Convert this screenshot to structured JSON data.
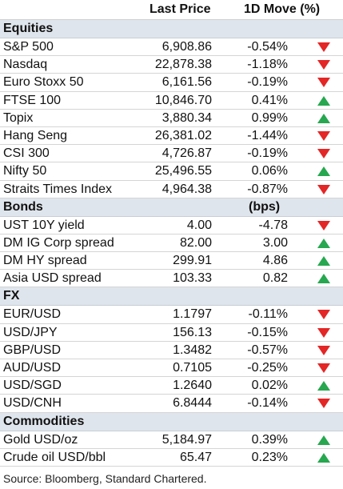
{
  "header": {
    "last_price": "Last Price",
    "move": "1D Move (%)"
  },
  "sections": [
    {
      "title": "Equities",
      "unit": "",
      "rows": [
        {
          "name": "S&P 500",
          "price": "6,908.86",
          "move": "-0.54%",
          "direction": "down"
        },
        {
          "name": "Nasdaq",
          "price": "22,878.38",
          "move": "-1.18%",
          "direction": "down"
        },
        {
          "name": "Euro Stoxx 50",
          "price": "6,161.56",
          "move": "-0.19%",
          "direction": "down"
        },
        {
          "name": "FTSE 100",
          "price": "10,846.70",
          "move": "0.41%",
          "direction": "up"
        },
        {
          "name": "Topix",
          "price": "3,880.34",
          "move": "0.99%",
          "direction": "up"
        },
        {
          "name": "Hang Seng",
          "price": "26,381.02",
          "move": "-1.44%",
          "direction": "down"
        },
        {
          "name": "CSI 300",
          "price": "4,726.87",
          "move": "-0.19%",
          "direction": "down"
        },
        {
          "name": "Nifty 50",
          "price": "25,496.55",
          "move": "0.06%",
          "direction": "up"
        },
        {
          "name": "Straits Times Index",
          "price": "4,964.38",
          "move": "-0.87%",
          "direction": "down"
        }
      ]
    },
    {
      "title": "Bonds",
      "unit": "(bps)",
      "rows": [
        {
          "name": "UST 10Y yield",
          "price": "4.00",
          "move": "-4.78",
          "direction": "down"
        },
        {
          "name": "DM IG Corp spread",
          "price": "82.00",
          "move": "3.00",
          "direction": "up"
        },
        {
          "name": "DM HY spread",
          "price": "299.91",
          "move": "4.86",
          "direction": "up"
        },
        {
          "name": "Asia USD spread",
          "price": "103.33",
          "move": "0.82",
          "direction": "up"
        }
      ]
    },
    {
      "title": "FX",
      "unit": "",
      "rows": [
        {
          "name": "EUR/USD",
          "price": "1.1797",
          "move": "-0.11%",
          "direction": "down"
        },
        {
          "name": "USD/JPY",
          "price": "156.13",
          "move": "-0.15%",
          "direction": "down"
        },
        {
          "name": "GBP/USD",
          "price": "1.3482",
          "move": "-0.57%",
          "direction": "down"
        },
        {
          "name": "AUD/USD",
          "price": "0.7105",
          "move": "-0.25%",
          "direction": "down"
        },
        {
          "name": "USD/SGD",
          "price": "1.2640",
          "move": "0.02%",
          "direction": "up"
        },
        {
          "name": "USD/CNH",
          "price": "6.8444",
          "move": "-0.14%",
          "direction": "down"
        }
      ]
    },
    {
      "title": "Commodities",
      "unit": "",
      "rows": [
        {
          "name": "Gold USD/oz",
          "price": "5,184.97",
          "move": "0.39%",
          "direction": "up"
        },
        {
          "name": "Crude oil USD/bbl",
          "price": "65.47",
          "move": "0.23%",
          "direction": "up"
        }
      ]
    }
  ],
  "footer": "Source: Bloomberg, Standard Chartered.",
  "colors": {
    "section_bg": "#dfe5ec",
    "up": "#27a74f",
    "down": "#e32626"
  }
}
